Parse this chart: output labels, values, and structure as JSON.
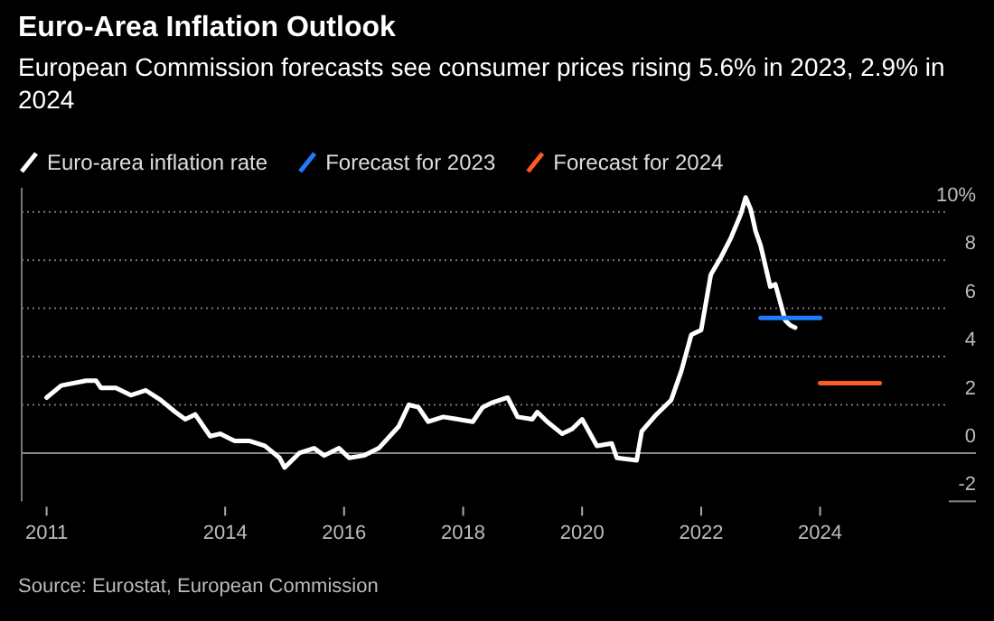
{
  "chart_data": {
    "type": "line",
    "title": "Euro-Area Inflation Outlook",
    "subtitle": "European Commission forecasts see consumer prices rising 5.6% in 2023, 2.9% in 2024",
    "annotations": [
      "Source: Eurostat, European Commission"
    ],
    "xlim": [
      "2010-08",
      "2026-03"
    ],
    "xticks": [
      {
        "value": "2011-01",
        "label": "2011"
      },
      {
        "value": "2014-01",
        "label": "2014"
      },
      {
        "value": "2016-01",
        "label": "2016"
      },
      {
        "value": "2018-01",
        "label": "2018"
      },
      {
        "value": "2020-01",
        "label": "2020"
      },
      {
        "value": "2022-01",
        "label": "2022"
      },
      {
        "value": "2024-01",
        "label": "2024"
      }
    ],
    "ylim": [
      -2,
      11
    ],
    "yticks": [
      -2,
      0,
      2,
      4,
      6,
      8,
      {
        "value": 10,
        "label": "10%"
      }
    ],
    "grid": "y",
    "legend": "top left",
    "line_style": "solid",
    "marker": "none",
    "series": [
      {
        "name": "Euro-area inflation rate",
        "color": "#ffffff",
        "x": [
          "2011-01",
          "2011-04",
          "2011-09",
          "2011-11",
          "2011-12",
          "2012-03",
          "2012-06",
          "2012-09",
          "2012-12",
          "2013-03",
          "2013-05",
          "2013-07",
          "2013-10",
          "2013-12",
          "2014-03",
          "2014-06",
          "2014-09",
          "2014-12",
          "2015-01",
          "2015-04",
          "2015-07",
          "2015-09",
          "2015-12",
          "2016-02",
          "2016-05",
          "2016-08",
          "2016-12",
          "2017-02",
          "2017-04",
          "2017-06",
          "2017-09",
          "2017-12",
          "2018-03",
          "2018-05",
          "2018-07",
          "2018-10",
          "2018-12",
          "2019-03",
          "2019-04",
          "2019-06",
          "2019-09",
          "2019-11",
          "2020-01",
          "2020-04",
          "2020-07",
          "2020-08",
          "2020-12",
          "2021-01",
          "2021-04",
          "2021-07",
          "2021-09",
          "2021-11",
          "2021-12",
          "2022-01",
          "2022-03",
          "2022-05",
          "2022-07",
          "2022-09",
          "2022-10",
          "2022-11",
          "2022-12",
          "2023-01",
          "2023-03",
          "2023-04",
          "2023-06",
          "2023-07",
          "2023-08"
        ],
        "values": [
          2.3,
          2.8,
          3.0,
          3.0,
          2.7,
          2.7,
          2.4,
          2.6,
          2.2,
          1.7,
          1.4,
          1.6,
          0.7,
          0.8,
          0.5,
          0.5,
          0.3,
          -0.2,
          -0.6,
          0.0,
          0.2,
          -0.1,
          0.2,
          -0.2,
          -0.1,
          0.2,
          1.1,
          2.0,
          1.9,
          1.3,
          1.5,
          1.4,
          1.3,
          1.9,
          2.1,
          2.3,
          1.5,
          1.4,
          1.7,
          1.3,
          0.8,
          1.0,
          1.4,
          0.3,
          0.4,
          -0.2,
          -0.3,
          0.9,
          1.6,
          2.2,
          3.4,
          4.9,
          5.0,
          5.1,
          7.4,
          8.1,
          8.9,
          9.9,
          10.6,
          10.1,
          9.2,
          8.6,
          6.9,
          7.0,
          5.5,
          5.3,
          5.2
        ]
      },
      {
        "name": "Forecast for 2023",
        "color": "#1f7cff",
        "x": [
          "2023-01",
          "2024-01"
        ],
        "values": [
          5.6,
          5.6
        ]
      },
      {
        "name": "Forecast for 2024",
        "color": "#ff5a1f",
        "x": [
          "2024-01",
          "2025-01"
        ],
        "values": [
          2.9,
          2.9
        ]
      }
    ]
  }
}
